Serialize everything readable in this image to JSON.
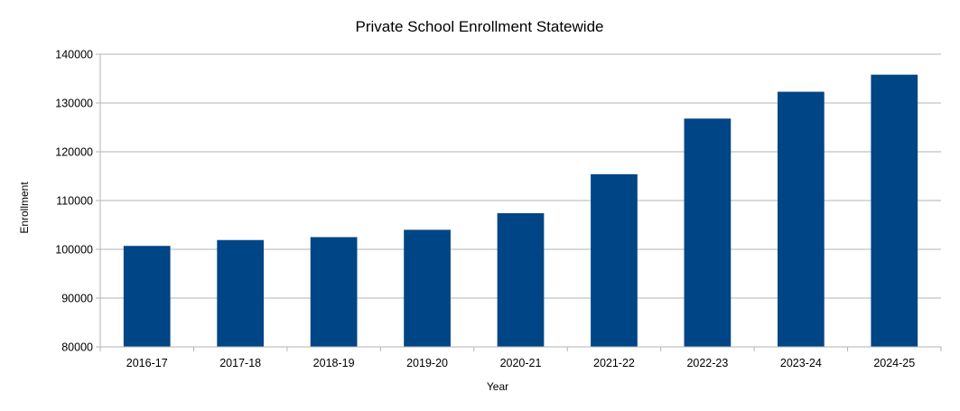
{
  "chart_data": {
    "type": "bar",
    "title": "Private School Enrollment Statewide",
    "xlabel": "Year",
    "ylabel": "Enrollment",
    "categories": [
      "2016-17",
      "2017-18",
      "2018-19",
      "2019-20",
      "2020-21",
      "2021-22",
      "2022-23",
      "2023-24",
      "2024-25"
    ],
    "values": [
      100700,
      101900,
      102500,
      104000,
      107400,
      115400,
      126800,
      132300,
      135800
    ],
    "ylim": [
      80000,
      140000
    ],
    "yticks": [
      80000,
      90000,
      100000,
      110000,
      120000,
      130000,
      140000
    ],
    "grid": true,
    "legend": "none",
    "colors": {
      "bar": "#004586",
      "grid": "#b3b3b3",
      "axis": "#b3b3b3"
    }
  }
}
